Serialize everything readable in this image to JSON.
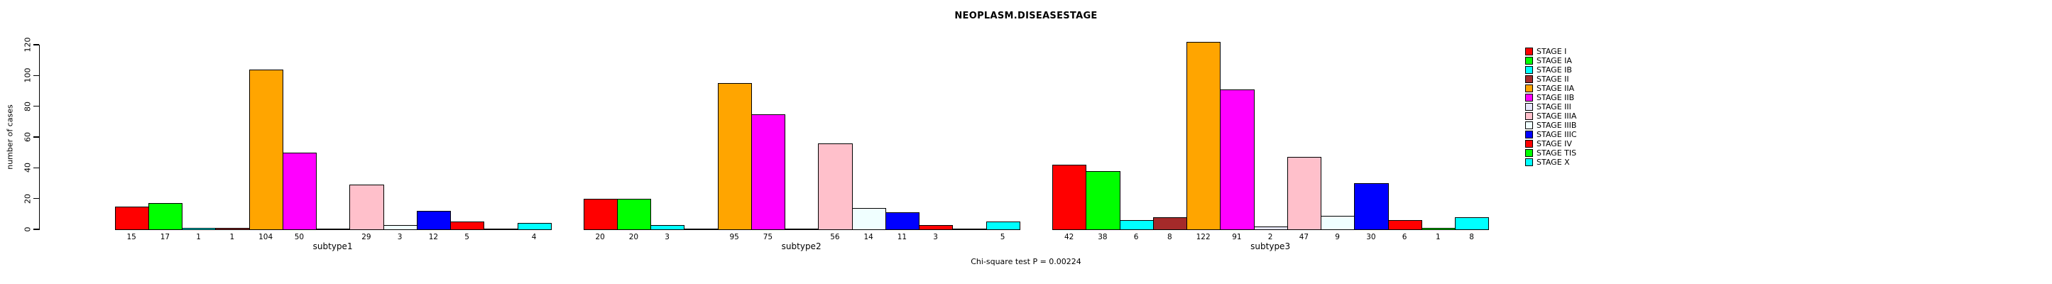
{
  "chart_data": {
    "type": "bar",
    "title": "NEOPLASM.DISEASESTAGE",
    "ylabel": "number of cases",
    "xlabel": "",
    "footnote": "Chi-square test P = 0.00224",
    "yticks": [
      0,
      20,
      40,
      60,
      80,
      100,
      120
    ],
    "ylim": [
      0,
      120
    ],
    "grid": false,
    "legend_position": "right",
    "bar_value_labels": true,
    "categories": [
      "subtype1",
      "subtype2",
      "subtype3"
    ],
    "series": [
      {
        "name": "STAGE I",
        "color": "#FF0000",
        "values": [
          15,
          20,
          42
        ]
      },
      {
        "name": "STAGE IA",
        "color": "#00FF00",
        "values": [
          17,
          20,
          38
        ]
      },
      {
        "name": "STAGE IB",
        "color": "#00FFFF",
        "values": [
          1,
          3,
          6
        ]
      },
      {
        "name": "STAGE II",
        "color": "#A52A2A",
        "values": [
          1,
          0,
          8
        ]
      },
      {
        "name": "STAGE IIA",
        "color": "#FFA500",
        "values": [
          104,
          95,
          122
        ]
      },
      {
        "name": "STAGE IIB",
        "color": "#FF00FF",
        "values": [
          50,
          75,
          91
        ]
      },
      {
        "name": "STAGE III",
        "color": "#E6E6FA",
        "values": [
          0,
          0,
          2
        ]
      },
      {
        "name": "STAGE IIIA",
        "color": "#FFC0CB",
        "values": [
          29,
          56,
          47
        ]
      },
      {
        "name": "STAGE IIIB",
        "color": "#F0FFFF",
        "values": [
          3,
          14,
          9
        ]
      },
      {
        "name": "STAGE IIIC",
        "color": "#0000FF",
        "values": [
          12,
          11,
          30
        ]
      },
      {
        "name": "STAGE IV",
        "color": "#FF0000",
        "values": [
          5,
          3,
          6
        ]
      },
      {
        "name": "STAGE TIS",
        "color": "#00FF00",
        "values": [
          0,
          0,
          1
        ]
      },
      {
        "name": "STAGE X",
        "color": "#00FFFF",
        "values": [
          4,
          5,
          8
        ]
      }
    ]
  }
}
